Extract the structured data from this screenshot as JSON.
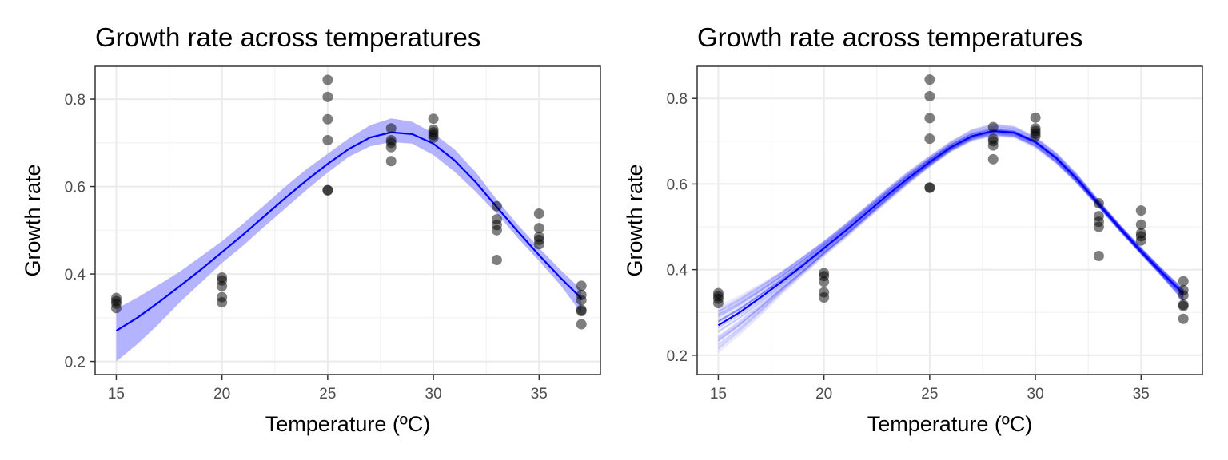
{
  "colors": {
    "fit_line": "#0000ff",
    "ribbon": "#b3b3ff",
    "draws": "#0000ff",
    "points": "#000000",
    "grid": "#ebebeb"
  },
  "chart_data": [
    {
      "type": "scatter",
      "title": "Growth rate across temperatures",
      "xlabel": "Temperature (ºC)",
      "ylabel": "Growth rate",
      "xlim": [
        14.0,
        37.9
      ],
      "ylim": [
        0.17,
        0.875
      ],
      "xticks": [
        15,
        20,
        25,
        30,
        35
      ],
      "yticks": [
        0.2,
        0.4,
        0.6,
        0.8
      ],
      "ytick_labels": [
        "0.2",
        "0.4",
        "0.6",
        "0.8"
      ],
      "grid": true,
      "uncertainty": "ribbon",
      "fit": {
        "x": [
          15,
          16,
          17,
          18,
          19,
          20,
          21,
          22,
          23,
          24,
          25,
          26,
          27,
          28,
          29,
          30,
          31,
          32,
          33,
          34,
          35,
          36,
          37
        ],
        "y": [
          0.27,
          0.3,
          0.335,
          0.372,
          0.41,
          0.45,
          0.49,
          0.532,
          0.574,
          0.614,
          0.652,
          0.686,
          0.712,
          0.724,
          0.72,
          0.698,
          0.66,
          0.61,
          0.553,
          0.497,
          0.443,
          0.392,
          0.344
        ],
        "lower": [
          0.2,
          0.24,
          0.285,
          0.335,
          0.38,
          0.425,
          0.465,
          0.508,
          0.55,
          0.592,
          0.632,
          0.668,
          0.692,
          0.702,
          0.698,
          0.672,
          0.634,
          0.588,
          0.538,
          0.482,
          0.43,
          0.375,
          0.31
        ],
        "upper": [
          0.32,
          0.346,
          0.375,
          0.405,
          0.44,
          0.475,
          0.515,
          0.557,
          0.6,
          0.64,
          0.675,
          0.71,
          0.74,
          0.756,
          0.748,
          0.722,
          0.685,
          0.633,
          0.57,
          0.512,
          0.46,
          0.41,
          0.364
        ]
      },
      "points": [
        {
          "x": 15,
          "y": 0.345
        },
        {
          "x": 15,
          "y": 0.338
        },
        {
          "x": 15,
          "y": 0.332
        },
        {
          "x": 15,
          "y": 0.322
        },
        {
          "x": 20,
          "y": 0.392
        },
        {
          "x": 20,
          "y": 0.385
        },
        {
          "x": 20,
          "y": 0.372
        },
        {
          "x": 20,
          "y": 0.347
        },
        {
          "x": 20,
          "y": 0.335
        },
        {
          "x": 25,
          "y": 0.844
        },
        {
          "x": 25,
          "y": 0.805
        },
        {
          "x": 25,
          "y": 0.754
        },
        {
          "x": 25,
          "y": 0.706
        },
        {
          "x": 25,
          "y": 0.592
        },
        {
          "x": 25,
          "y": 0.591
        },
        {
          "x": 28,
          "y": 0.733
        },
        {
          "x": 28,
          "y": 0.706
        },
        {
          "x": 28,
          "y": 0.7
        },
        {
          "x": 28,
          "y": 0.69
        },
        {
          "x": 28,
          "y": 0.658
        },
        {
          "x": 30,
          "y": 0.755
        },
        {
          "x": 30,
          "y": 0.73
        },
        {
          "x": 30,
          "y": 0.724
        },
        {
          "x": 30,
          "y": 0.718
        },
        {
          "x": 30,
          "y": 0.712
        },
        {
          "x": 33,
          "y": 0.555
        },
        {
          "x": 33,
          "y": 0.525
        },
        {
          "x": 33,
          "y": 0.512
        },
        {
          "x": 33,
          "y": 0.5
        },
        {
          "x": 33,
          "y": 0.432
        },
        {
          "x": 35,
          "y": 0.538
        },
        {
          "x": 35,
          "y": 0.505
        },
        {
          "x": 35,
          "y": 0.485
        },
        {
          "x": 35,
          "y": 0.478
        },
        {
          "x": 35,
          "y": 0.468
        },
        {
          "x": 37,
          "y": 0.373
        },
        {
          "x": 37,
          "y": 0.352
        },
        {
          "x": 37,
          "y": 0.34
        },
        {
          "x": 37,
          "y": 0.318
        },
        {
          "x": 37,
          "y": 0.315
        },
        {
          "x": 37,
          "y": 0.285
        }
      ]
    },
    {
      "type": "scatter",
      "title": "Growth rate across temperatures",
      "xlabel": "Temperature (ºC)",
      "ylabel": "Growth rate",
      "xlim": [
        14.0,
        37.9
      ],
      "ylim": [
        0.155,
        0.875
      ],
      "xticks": [
        15,
        20,
        25,
        30,
        35
      ],
      "yticks": [
        0.2,
        0.4,
        0.6,
        0.8
      ],
      "ytick_labels": [
        "0.2",
        "0.4",
        "0.6",
        "0.8"
      ],
      "grid": true,
      "uncertainty": "draws",
      "fit": {
        "x": [
          15,
          16,
          17,
          18,
          19,
          20,
          21,
          22,
          23,
          24,
          25,
          26,
          27,
          28,
          29,
          30,
          31,
          32,
          33,
          34,
          35,
          36,
          37
        ],
        "y": [
          0.27,
          0.3,
          0.335,
          0.372,
          0.41,
          0.45,
          0.49,
          0.532,
          0.574,
          0.614,
          0.652,
          0.686,
          0.712,
          0.724,
          0.72,
          0.698,
          0.66,
          0.61,
          0.553,
          0.497,
          0.443,
          0.392,
          0.344
        ],
        "lower": [
          0.2,
          0.24,
          0.285,
          0.335,
          0.38,
          0.425,
          0.465,
          0.508,
          0.55,
          0.592,
          0.632,
          0.668,
          0.692,
          0.702,
          0.698,
          0.672,
          0.634,
          0.588,
          0.538,
          0.482,
          0.43,
          0.375,
          0.31
        ],
        "upper": [
          0.32,
          0.346,
          0.375,
          0.405,
          0.44,
          0.475,
          0.515,
          0.557,
          0.6,
          0.64,
          0.675,
          0.71,
          0.74,
          0.756,
          0.748,
          0.722,
          0.685,
          0.633,
          0.57,
          0.512,
          0.46,
          0.41,
          0.364
        ]
      },
      "points": [
        {
          "x": 15,
          "y": 0.345
        },
        {
          "x": 15,
          "y": 0.338
        },
        {
          "x": 15,
          "y": 0.332
        },
        {
          "x": 15,
          "y": 0.322
        },
        {
          "x": 20,
          "y": 0.392
        },
        {
          "x": 20,
          "y": 0.385
        },
        {
          "x": 20,
          "y": 0.372
        },
        {
          "x": 20,
          "y": 0.347
        },
        {
          "x": 20,
          "y": 0.335
        },
        {
          "x": 25,
          "y": 0.844
        },
        {
          "x": 25,
          "y": 0.805
        },
        {
          "x": 25,
          "y": 0.754
        },
        {
          "x": 25,
          "y": 0.706
        },
        {
          "x": 25,
          "y": 0.592
        },
        {
          "x": 25,
          "y": 0.591
        },
        {
          "x": 28,
          "y": 0.733
        },
        {
          "x": 28,
          "y": 0.706
        },
        {
          "x": 28,
          "y": 0.7
        },
        {
          "x": 28,
          "y": 0.69
        },
        {
          "x": 28,
          "y": 0.658
        },
        {
          "x": 30,
          "y": 0.755
        },
        {
          "x": 30,
          "y": 0.73
        },
        {
          "x": 30,
          "y": 0.724
        },
        {
          "x": 30,
          "y": 0.718
        },
        {
          "x": 30,
          "y": 0.712
        },
        {
          "x": 33,
          "y": 0.555
        },
        {
          "x": 33,
          "y": 0.525
        },
        {
          "x": 33,
          "y": 0.512
        },
        {
          "x": 33,
          "y": 0.5
        },
        {
          "x": 33,
          "y": 0.432
        },
        {
          "x": 35,
          "y": 0.538
        },
        {
          "x": 35,
          "y": 0.505
        },
        {
          "x": 35,
          "y": 0.485
        },
        {
          "x": 35,
          "y": 0.478
        },
        {
          "x": 35,
          "y": 0.468
        },
        {
          "x": 37,
          "y": 0.373
        },
        {
          "x": 37,
          "y": 0.352
        },
        {
          "x": 37,
          "y": 0.34
        },
        {
          "x": 37,
          "y": 0.318
        },
        {
          "x": 37,
          "y": 0.315
        },
        {
          "x": 37,
          "y": 0.285
        }
      ]
    }
  ]
}
